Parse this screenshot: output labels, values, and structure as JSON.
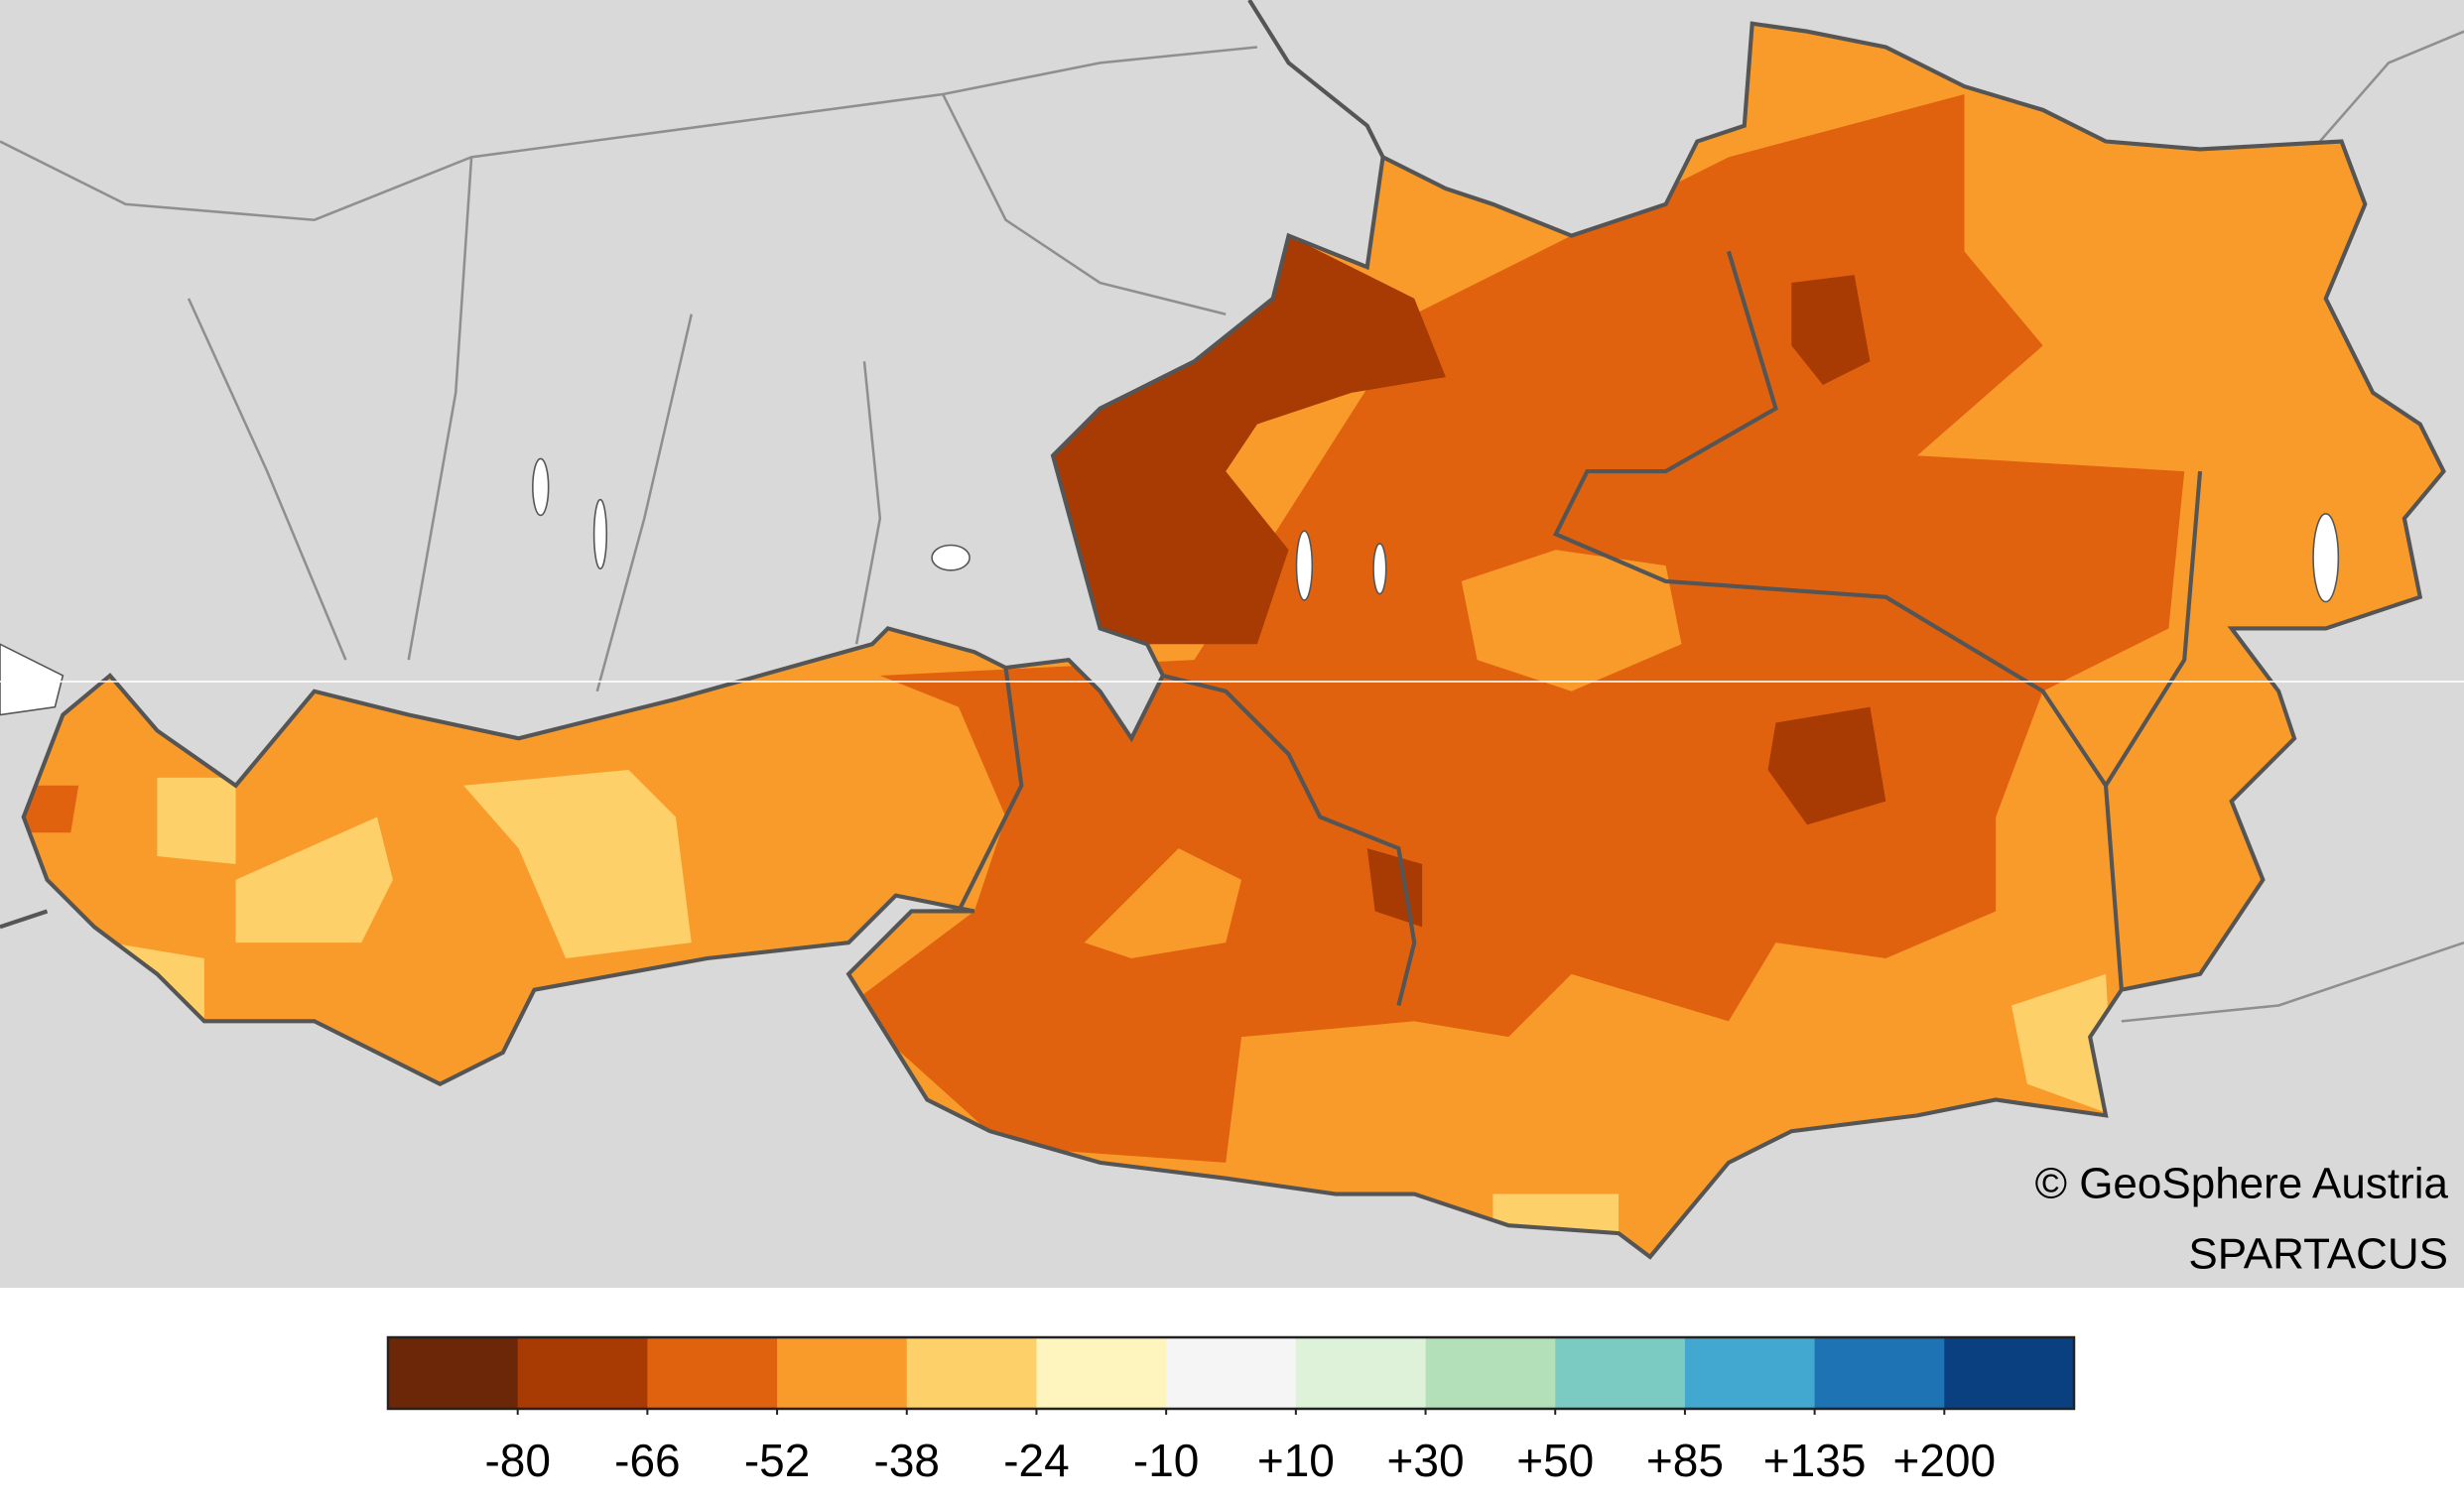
{
  "map": {
    "credit": "© GeoSphere Austria",
    "source": "SPARTACUS"
  },
  "legend": {
    "colors": [
      "#6b2708",
      "#a83a03",
      "#e0620f",
      "#f99b2b",
      "#fdd069",
      "#fef5be",
      "#f5f5f5",
      "#def2d9",
      "#b3e0b8",
      "#7ccbc3",
      "#43a8d0",
      "#1d73b4",
      "#0a3f80"
    ],
    "ticks": [
      -80,
      -66,
      -52,
      -38,
      -24,
      -10,
      {
        "value": 10,
        "label": "+10"
      },
      {
        "value": 30,
        "label": "+30"
      },
      {
        "value": 50,
        "label": "+50"
      },
      {
        "value": 85,
        "label": "+85"
      },
      {
        "value": 135,
        "label": "+135"
      },
      {
        "value": 200,
        "label": "+200"
      }
    ]
  }
}
